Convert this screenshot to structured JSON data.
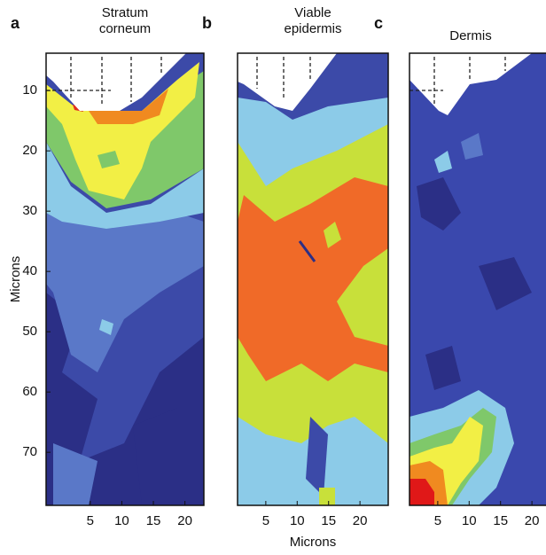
{
  "chart_data": [
    {
      "type": "contour",
      "panel_label": "a",
      "title": "Stratum corneum",
      "xlim": [
        -2,
        23
      ],
      "ylim": [
        3.8,
        78.8
      ],
      "y_inverted": true,
      "xticks": [
        5,
        10,
        15,
        20
      ],
      "yticks": [
        10,
        20,
        30,
        40,
        50,
        60,
        70
      ],
      "y_label": "Microns"
    },
    {
      "type": "contour",
      "panel_label": "b",
      "title": "Viable epidermis",
      "xlim": [
        0.5,
        24.5
      ],
      "ylim": [
        3.8,
        78.8
      ],
      "y_inverted": true,
      "xticks": [
        5,
        10,
        15,
        20
      ],
      "x_label": "Microns"
    },
    {
      "type": "contour",
      "panel_label": "c",
      "title": "Dermis",
      "xlim": [
        0.5,
        24.5
      ],
      "ylim": [
        3.8,
        78.8
      ],
      "y_inverted": true,
      "xticks": [
        5,
        10,
        15,
        20
      ]
    }
  ]
}
